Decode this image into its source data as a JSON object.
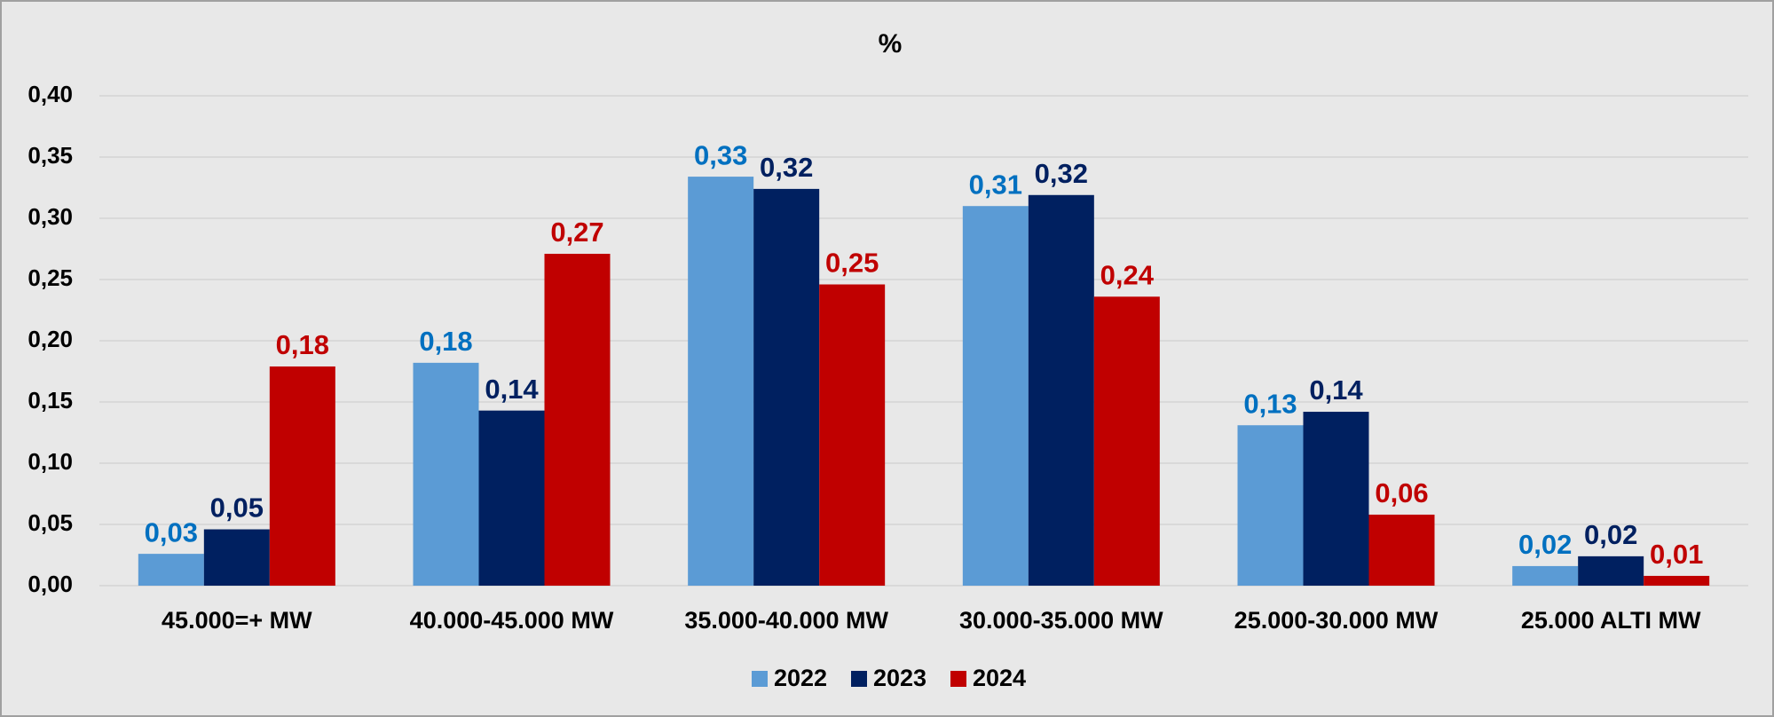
{
  "chart_data": {
    "type": "bar",
    "title": "%",
    "categories": [
      "45.000=+ MW",
      "40.000-45.000 MW",
      "35.000-40.000 MW",
      "30.000-35.000 MW",
      "25.000-30.000 MW",
      "25.000 ALTI MW"
    ],
    "series": [
      {
        "name": "2022",
        "color": "#5b9bd5",
        "label_color": "#0070c0",
        "values": [
          0.026,
          0.182,
          0.334,
          0.31,
          0.131,
          0.016
        ],
        "value_labels": [
          "0,03",
          "0,18",
          "0,33",
          "0,31",
          "0,13",
          "0,02"
        ]
      },
      {
        "name": "2023",
        "color": "#002060",
        "label_color": "#002060",
        "values": [
          0.046,
          0.143,
          0.324,
          0.319,
          0.142,
          0.024
        ],
        "value_labels": [
          "0,05",
          "0,14",
          "0,32",
          "0,32",
          "0,14",
          "0,02"
        ]
      },
      {
        "name": "2024",
        "color": "#c00000",
        "label_color": "#c00000",
        "values": [
          0.179,
          0.271,
          0.246,
          0.236,
          0.058,
          0.008
        ],
        "value_labels": [
          "0,18",
          "0,27",
          "0,25",
          "0,24",
          "0,06",
          "0,01"
        ]
      }
    ],
    "ylim": [
      0,
      0.4
    ],
    "yticks": [
      {
        "value": 0,
        "label": "0,00"
      },
      {
        "value": 0.05,
        "label": "0,05"
      },
      {
        "value": 0.1,
        "label": "0,10"
      },
      {
        "value": 0.15,
        "label": "0,15"
      },
      {
        "value": 0.2,
        "label": "0,20"
      },
      {
        "value": 0.25,
        "label": "0,25"
      },
      {
        "value": 0.3,
        "label": "0,30"
      },
      {
        "value": 0.35,
        "label": "0,35"
      },
      {
        "value": 0.4,
        "label": "0,40"
      }
    ],
    "grid": true,
    "legend": "bottom"
  }
}
